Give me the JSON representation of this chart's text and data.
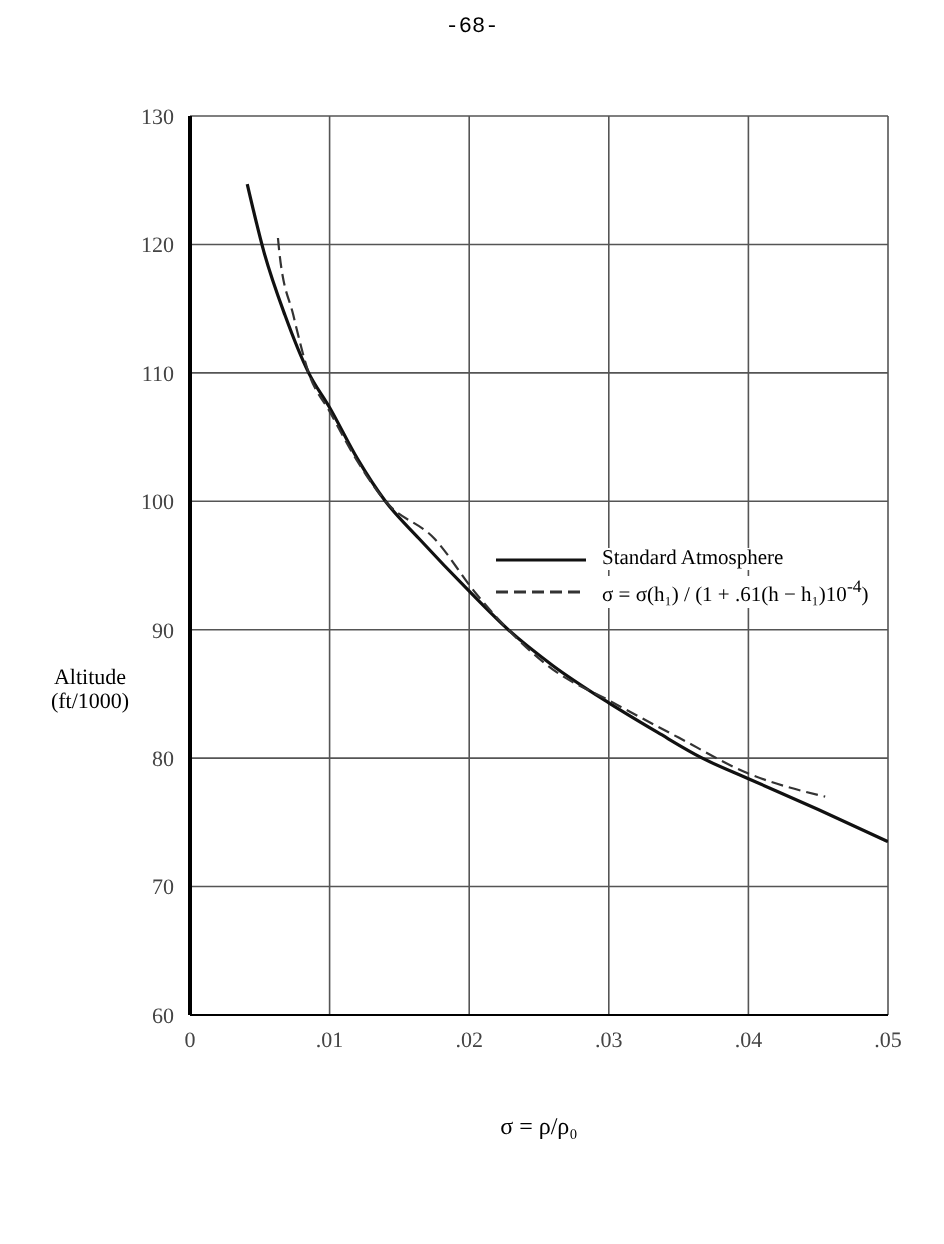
{
  "chart_data": {
    "type": "line",
    "xlabel": "σ = ρ/ρ₀",
    "ylabel": "Altitude (ft/1000)",
    "annotations": [
      "-68-"
    ],
    "xlim": [
      0,
      0.05
    ],
    "xticks": [
      0,
      {
        "value": 0.01,
        "label": ".01"
      },
      {
        "value": 0.02,
        "label": ".02"
      },
      {
        "value": 0.03,
        "label": ".03"
      },
      {
        "value": 0.04,
        "label": ".04"
      },
      {
        "value": 0.05,
        "label": ".05"
      }
    ],
    "ylim": [
      60,
      130
    ],
    "yticks": [
      60,
      70,
      80,
      90,
      100,
      110,
      120,
      130
    ],
    "grid": true,
    "legend": "right",
    "marker": "none",
    "series": [
      {
        "name": "Standard Atmosphere",
        "color": "#111111",
        "line_style": "solid",
        "x": [
          0.0041,
          0.0053,
          0.0068,
          0.0085,
          0.01,
          0.012,
          0.014,
          0.0164,
          0.02,
          0.0228,
          0.026,
          0.03,
          0.0335,
          0.0367,
          0.04,
          0.045,
          0.05
        ],
        "values": [
          124.7,
          119.4,
          114.5,
          110,
          107.3,
          103.3,
          100,
          97.1,
          93,
          90,
          87.2,
          84.3,
          82,
          80,
          78.4,
          76,
          73.5
        ]
      },
      {
        "name": "σ = σ(h₁) / (1 + .61(h − h₁)10$^{-4}$)",
        "color": "#333333",
        "line_style": "dashed",
        "x": [
          0.0063,
          0.0064,
          0.0074,
          0.0085,
          0.01,
          0.012,
          0.014,
          0.0175,
          0.0205,
          0.0228,
          0.026,
          0.03,
          0.035,
          0.04,
          0.0455
        ],
        "values": [
          120.5,
          119.4,
          114.5,
          110,
          107,
          103.1,
          100,
          97.1,
          92.8,
          90,
          86.9,
          84.5,
          81.6,
          78.8,
          77
        ]
      }
    ]
  }
}
